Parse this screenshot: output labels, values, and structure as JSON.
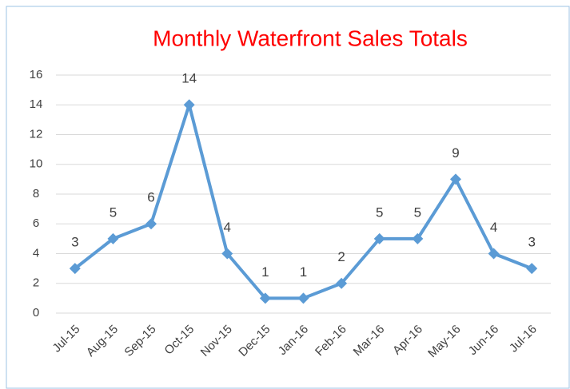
{
  "chart_data": {
    "type": "line",
    "title": "Monthly Waterfront Sales Totals",
    "categories": [
      "Jul-15",
      "Aug-15",
      "Sep-15",
      "Oct-15",
      "Nov-15",
      "Dec-15",
      "Jan-16",
      "Feb-16",
      "Mar-16",
      "Apr-16",
      "May-16",
      "Jun-16",
      "Jul-16"
    ],
    "series": [
      {
        "name": "Sales",
        "color": "#5b9bd5",
        "values": [
          3,
          5,
          6,
          14,
          4,
          1,
          1,
          2,
          5,
          5,
          9,
          4,
          3
        ]
      }
    ],
    "ylim": [
      0,
      16
    ],
    "yticks": [
      0,
      2,
      4,
      6,
      8,
      10,
      12,
      14,
      16
    ],
    "grid": true,
    "title_color": "#ff0000"
  }
}
